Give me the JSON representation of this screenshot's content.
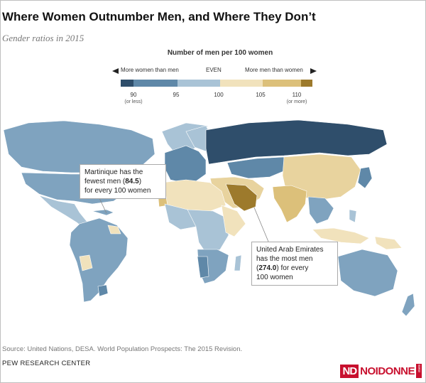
{
  "title": "Where Women Outnumber Men, and Where They Don’t",
  "subtitle": "Gender ratios in 2015",
  "legend": {
    "title": "Number of men per 100 women",
    "left_label": "More women than men",
    "center_label": "EVEN",
    "right_label": "More men than women",
    "ticks": [
      {
        "value": "90",
        "note": "(or less)"
      },
      {
        "value": "95",
        "note": ""
      },
      {
        "value": "100",
        "note": ""
      },
      {
        "value": "105",
        "note": ""
      },
      {
        "value": "110",
        "note": "(or more)"
      }
    ],
    "colors": [
      "#2f4e6b",
      "#5f88a8",
      "#a9c3d6",
      "#f1e2bc",
      "#dcc07a",
      "#9d7a2c"
    ]
  },
  "callouts": {
    "martinique": {
      "line1": "Martinique has the",
      "line2_pre": "fewest men (",
      "line2_value": "84.5",
      "line2_post": ")",
      "line3": "for every 100 women"
    },
    "uae": {
      "line1": "United Arab Emirates",
      "line2": "has the most men",
      "line3_pre": "(",
      "line3_value": "274.0",
      "line3_post": ") for every",
      "line4": "100 women"
    }
  },
  "source": "Source: United Nations, DESA. World Population Prospects: The 2015 Revision.",
  "credit": "PEW RESEARCH CENTER",
  "logo": {
    "mark": "ND",
    "name": "NOIDONNE",
    "tag": "www"
  }
}
